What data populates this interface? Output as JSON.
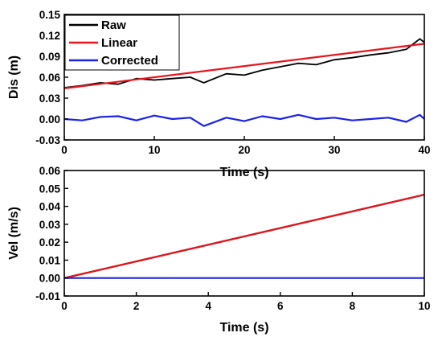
{
  "chart_data": [
    {
      "type": "line",
      "xlabel": "Time (s)",
      "ylabel": "Dis (m)",
      "xlim": [
        0,
        40
      ],
      "ylim": [
        -0.03,
        0.15
      ],
      "xticks": [
        0,
        10,
        20,
        30,
        40
      ],
      "yticks": [
        -0.03,
        0.0,
        0.03,
        0.06,
        0.09,
        0.12,
        0.15
      ],
      "ytick_labels": [
        "-0.03",
        "0.00",
        "0.03",
        "0.06",
        "0.09",
        "0.12",
        "0.15"
      ],
      "grid": false,
      "legend": {
        "position": "top-left",
        "entries": [
          "Raw",
          "Linear",
          "Corrected"
        ]
      },
      "series": [
        {
          "name": "Raw",
          "color": "#000000",
          "x": [
            0,
            2,
            4,
            6,
            8,
            10,
            12,
            14,
            15.5,
            18,
            20,
            22,
            24,
            26,
            28,
            30,
            32,
            34,
            36,
            38,
            39.5,
            40
          ],
          "y": [
            0.045,
            0.048,
            0.052,
            0.05,
            0.058,
            0.056,
            0.058,
            0.06,
            0.052,
            0.065,
            0.063,
            0.07,
            0.075,
            0.08,
            0.078,
            0.085,
            0.088,
            0.092,
            0.095,
            0.1,
            0.115,
            0.11
          ]
        },
        {
          "name": "Linear",
          "color": "#e8141c",
          "x": [
            0,
            40
          ],
          "y": [
            0.044,
            0.108
          ]
        },
        {
          "name": "Corrected",
          "color": "#1a22e6",
          "x": [
            0,
            2,
            4,
            6,
            8,
            10,
            12,
            14,
            15.5,
            18,
            20,
            22,
            24,
            26,
            28,
            30,
            32,
            34,
            36,
            38,
            39.5,
            40
          ],
          "y": [
            0.0,
            -0.002,
            0.003,
            0.004,
            -0.002,
            0.005,
            0.0,
            0.002,
            -0.01,
            0.002,
            -0.003,
            0.004,
            0.0,
            0.006,
            0.0,
            0.002,
            -0.002,
            0.0,
            0.002,
            -0.004,
            0.006,
            0.0
          ]
        }
      ]
    },
    {
      "type": "line",
      "xlabel": "Time (s)",
      "ylabel": "Vel (m/s)",
      "xlim": [
        0,
        10
      ],
      "ylim": [
        -0.01,
        0.06
      ],
      "xticks": [
        0,
        2,
        4,
        6,
        8,
        10
      ],
      "yticks": [
        -0.01,
        0.0,
        0.01,
        0.02,
        0.03,
        0.04,
        0.05,
        0.06
      ],
      "ytick_labels": [
        "-0.01",
        "0.00",
        "0.01",
        "0.02",
        "0.03",
        "0.04",
        "0.05",
        "0.06"
      ],
      "grid": false,
      "series": [
        {
          "color": "#000000",
          "x": [
            0,
            10
          ],
          "y": [
            0.0,
            0.0465
          ]
        },
        {
          "color": "#e8141c",
          "x": [
            0,
            10
          ],
          "y": [
            0.0,
            0.0465
          ]
        },
        {
          "color": "#1a22e6",
          "x": [
            0,
            10
          ],
          "y": [
            0.0,
            0.0
          ]
        }
      ]
    }
  ]
}
